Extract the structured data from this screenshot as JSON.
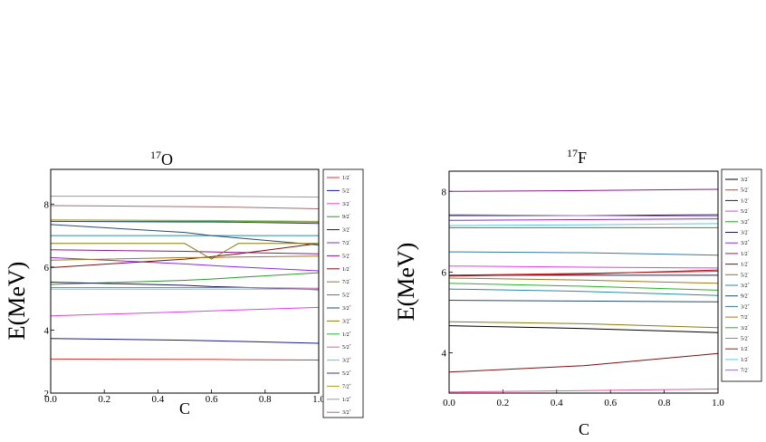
{
  "chart_data": [
    {
      "type": "line",
      "title": {
        "sup": "17",
        "base": "O"
      },
      "xlabel": "C",
      "ylabel": "E(MeV)",
      "xlim": [
        0.0,
        1.0
      ],
      "ylim": [
        2.0,
        9.1
      ],
      "xticks": [
        "0.0",
        "0.2",
        "0.4",
        "0.6",
        "0.8",
        "1.0"
      ],
      "yticks": [
        "2",
        "4",
        "6",
        "8"
      ],
      "legend_position": "right-outside",
      "x": [
        0.0,
        0.5,
        0.6,
        0.7,
        1.0
      ],
      "series": [
        {
          "label": "1/2",
          "parity": "-",
          "color": "#e8302c",
          "values": [
            3.08,
            3.07,
            3.07,
            3.06,
            3.05
          ]
        },
        {
          "label": "5/2",
          "parity": "-",
          "color": "#1a1a8c",
          "values": [
            3.73,
            3.68,
            3.66,
            3.64,
            3.58
          ]
        },
        {
          "label": "3/2",
          "parity": "-",
          "color": "#e040e0",
          "values": [
            4.45,
            4.58,
            4.61,
            4.64,
            4.72
          ]
        },
        {
          "label": "9/2",
          "parity": "-",
          "color": "#2a9a2a",
          "values": [
            5.45,
            5.58,
            5.62,
            5.67,
            5.82
          ]
        },
        {
          "label": "3/2",
          "parity": "-",
          "color": "#1a1a5a",
          "values": [
            5.52,
            5.42,
            5.38,
            5.36,
            5.28
          ]
        },
        {
          "label": "7/2",
          "parity": "-",
          "color": "#8a2be2",
          "values": [
            6.3,
            6.1,
            6.05,
            6.0,
            5.88
          ]
        },
        {
          "label": "5/2",
          "parity": "-",
          "color": "#8a1a8a",
          "values": [
            6.55,
            6.5,
            6.48,
            6.46,
            6.42
          ]
        },
        {
          "label": "1/2",
          "parity": "-",
          "color": "#7a1010",
          "values": [
            5.98,
            6.25,
            6.33,
            6.42,
            6.75
          ]
        },
        {
          "label": "7/2",
          "parity": "-",
          "color": "#a0781e",
          "values": [
            6.22,
            6.3,
            6.3,
            6.32,
            6.35
          ]
        },
        {
          "label": "5/2",
          "parity": "-",
          "color": "#2a8aaa",
          "values": [
            7.0,
            7.0,
            7.0,
            7.0,
            7.0
          ]
        },
        {
          "label": "3/2",
          "parity": "+",
          "color": "#2a4a6a",
          "values": [
            7.35,
            7.1,
            7.0,
            6.92,
            6.7
          ]
        },
        {
          "label": "3/2",
          "parity": "+",
          "color": "#8a7a10",
          "values": [
            6.75,
            6.75,
            6.25,
            6.75,
            6.75
          ]
        },
        {
          "label": "1/2",
          "parity": "+",
          "color": "#2ab02a",
          "values": [
            7.45,
            7.45,
            7.45,
            7.45,
            7.42
          ]
        },
        {
          "label": "5/2",
          "parity": "+",
          "color": "#e85a9a",
          "values": [
            5.35,
            5.35,
            5.35,
            5.35,
            5.33
          ]
        },
        {
          "label": "3/2",
          "parity": "+",
          "color": "#5ac8e8",
          "values": [
            5.3,
            5.3,
            5.3,
            5.3,
            5.3
          ]
        },
        {
          "label": "5/2",
          "parity": "+",
          "color": "#3a3a9a",
          "values": [
            7.45,
            7.43,
            7.43,
            7.42,
            7.38
          ]
        },
        {
          "label": "7/2",
          "parity": "+",
          "color": "#a8a020",
          "values": [
            7.5,
            7.48,
            7.48,
            7.47,
            7.45
          ]
        },
        {
          "label": "1/2",
          "parity": "+",
          "color": "#9a9a9a",
          "values": [
            8.25,
            8.25,
            8.25,
            8.24,
            8.22
          ]
        },
        {
          "label": "3/2",
          "parity": "+",
          "color": "#a07070",
          "values": [
            7.95,
            7.92,
            7.91,
            7.9,
            7.85
          ]
        }
      ]
    },
    {
      "type": "line",
      "title": {
        "sup": "17",
        "base": "F"
      },
      "xlabel": "C",
      "ylabel": "E(MeV)",
      "xlim": [
        0.0,
        1.0
      ],
      "ylim": [
        3.0,
        8.5
      ],
      "xticks": [
        "0.0",
        "0.2",
        "0.4",
        "0.6",
        "0.8",
        "1.0"
      ],
      "yticks": [
        "4",
        "6",
        "8"
      ],
      "legend_position": "right-outside",
      "x": [
        0.0,
        0.5,
        1.0
      ],
      "series": [
        {
          "label": "3/2",
          "parity": "-",
          "color": "#000000",
          "values": [
            4.67,
            4.6,
            4.5
          ]
        },
        {
          "label": "5/2",
          "parity": "-",
          "color": "#e8302c",
          "values": [
            5.92,
            5.97,
            6.02
          ]
        },
        {
          "label": "1/2",
          "parity": "-",
          "color": "#1a1a8c",
          "values": [
            5.92,
            5.92,
            5.92
          ]
        },
        {
          "label": "5/2",
          "parity": "-",
          "color": "#e040e0",
          "values": [
            6.15,
            6.12,
            6.1
          ]
        },
        {
          "label": "3/2",
          "parity": "+",
          "color": "#2a9a2a",
          "values": [
            7.1,
            7.1,
            7.1
          ]
        },
        {
          "label": "3/2",
          "parity": "-",
          "color": "#1a1a5a",
          "values": [
            7.4,
            7.4,
            7.42
          ]
        },
        {
          "label": "3/2",
          "parity": "+",
          "color": "#8a2be2",
          "values": [
            7.28,
            7.3,
            7.32
          ]
        },
        {
          "label": "1/2",
          "parity": "-",
          "color": "#8a1a8a",
          "values": [
            8.0,
            8.02,
            8.05
          ]
        },
        {
          "label": "1/2",
          "parity": "-",
          "color": "#7a1010",
          "values": [
            3.52,
            3.68,
            3.98
          ]
        },
        {
          "label": "5/2",
          "parity": "-",
          "color": "#8a7a10",
          "values": [
            4.77,
            4.72,
            4.62
          ]
        },
        {
          "label": "3/2",
          "parity": "+",
          "color": "#2a8aaa",
          "values": [
            5.58,
            5.52,
            5.42
          ]
        },
        {
          "label": "9/2",
          "parity": "-",
          "color": "#2a4a6a",
          "values": [
            5.3,
            5.28,
            5.26
          ]
        },
        {
          "label": "3/2",
          "parity": "+",
          "color": "#3a7a9a",
          "values": [
            6.5,
            6.48,
            6.42
          ]
        },
        {
          "label": "7/2",
          "parity": "-",
          "color": "#a0781e",
          "values": [
            5.85,
            5.8,
            5.72
          ]
        },
        {
          "label": "3/2",
          "parity": "-",
          "color": "#2ab02a",
          "values": [
            5.72,
            5.65,
            5.55
          ]
        },
        {
          "label": "5/2",
          "parity": "-",
          "color": "#e85a9a",
          "values": [
            3.03,
            3.06,
            3.1
          ]
        },
        {
          "label": "1/2",
          "parity": "-",
          "color": "#a01818",
          "values": [
            5.9,
            5.95,
            6.05
          ]
        },
        {
          "label": "1/2",
          "parity": "-",
          "color": "#5ac8e8",
          "values": [
            7.15,
            7.17,
            7.2
          ]
        },
        {
          "label": "7/2",
          "parity": "-",
          "color": "#9a70c8",
          "values": [
            7.42,
            7.4,
            7.38
          ]
        }
      ]
    }
  ]
}
